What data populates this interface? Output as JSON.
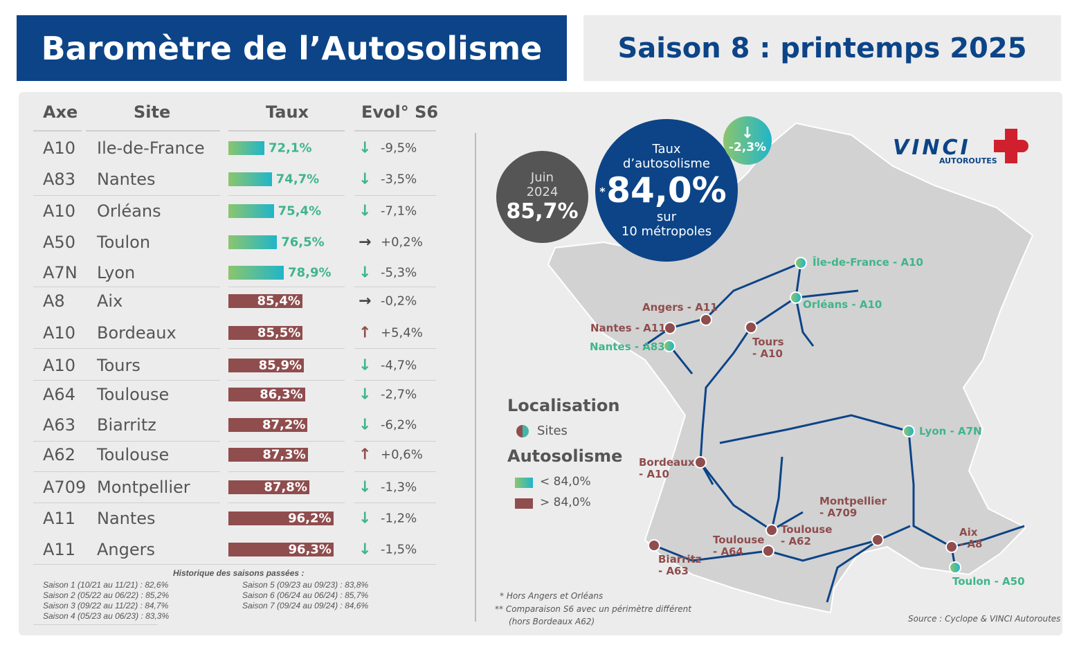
{
  "header": {
    "title": "Baromètre de l’Autosolisme",
    "season": "Saison 8 : printemps 2025"
  },
  "colors": {
    "brand_blue": "#0c4487",
    "above_threshold": "#8f4d4e",
    "below_gradient": [
      "#8cc56d",
      "#20b5c9"
    ],
    "panel": "#ececec"
  },
  "table": {
    "headers": {
      "axe": "Axe",
      "site": "Site",
      "taux": "Taux",
      "evol": "Evol° S6"
    }
  },
  "chart_data": {
    "type": "bar",
    "orientation": "horizontal",
    "threshold": 84.0,
    "rows": [
      {
        "axe": "A10",
        "site": "Ile-de-France",
        "taux": 72.1,
        "label": "72,1%",
        "evol": "-9,5%",
        "trend": "down"
      },
      {
        "axe": "A83",
        "site": "Nantes",
        "taux": 74.7,
        "label": "74,7%",
        "evol": "-3,5%",
        "trend": "down"
      },
      {
        "axe": "A10",
        "site": "Orléans",
        "taux": 75.4,
        "label": "75,4%",
        "evol": "-7,1%",
        "trend": "down"
      },
      {
        "axe": "A50",
        "site": "Toulon",
        "taux": 76.5,
        "label": "76,5%",
        "evol": "+0,2%",
        "trend": "flat"
      },
      {
        "axe": "A7N",
        "site": "Lyon",
        "taux": 78.9,
        "label": "78,9%",
        "evol": "-5,3%",
        "trend": "down"
      },
      {
        "axe": "A8",
        "site": "Aix",
        "taux": 85.4,
        "label": "85,4%",
        "evol": "-0,2%",
        "trend": "flat"
      },
      {
        "axe": "A10",
        "site": "Bordeaux",
        "taux": 85.5,
        "label": "85,5%",
        "evol": "+5,4%",
        "trend": "up"
      },
      {
        "axe": "A10",
        "site": "Tours",
        "taux": 85.9,
        "label": "85,9%",
        "evol": "-4,7%",
        "trend": "down"
      },
      {
        "axe": "A64",
        "site": "Toulouse",
        "taux": 86.3,
        "label": "86,3%",
        "evol": "-2,7%",
        "trend": "down"
      },
      {
        "axe": "A63",
        "site": "Biarritz",
        "taux": 87.2,
        "label": "87,2%",
        "evol": "-6,2%",
        "trend": "down"
      },
      {
        "axe": "A62",
        "site": "Toulouse",
        "taux": 87.3,
        "label": "87,3%",
        "evol": "+0,6%",
        "trend": "up"
      },
      {
        "axe": "A709",
        "site": "Montpellier",
        "taux": 87.8,
        "label": "87,8%",
        "evol": "-1,3%",
        "trend": "down"
      },
      {
        "axe": "A11",
        "site": "Nantes",
        "taux": 96.2,
        "label": "96,2%",
        "evol": "-1,2%",
        "trend": "down"
      },
      {
        "axe": "A11",
        "site": "Angers",
        "taux": 96.3,
        "label": "96,3%",
        "evol": "-1,5%",
        "trend": "down"
      }
    ]
  },
  "history": {
    "title": "Historique des saisons passées :",
    "items": [
      "Saison 1 (10/21 au 11/21) : 82,6%",
      "Saison 2 (05/22 au 06/22) : 85,2%",
      "Saison 3 (09/22 au 11/22) : 84,7%",
      "Saison 4 (05/23 au 06/23) : 83,3%",
      "Saison 5 (09/23 au 09/23) : 83,8%",
      "Saison 6 (06/24 au 06/24) : 85,7%",
      "Saison 7 (09/24 au 09/24) : 84,6%"
    ]
  },
  "kpi": {
    "prev_label1": "Juin",
    "prev_label2": "2024",
    "prev_value": "85,7%",
    "main_label1": "Taux",
    "main_label2": "d’autosolisme",
    "main_star": "*",
    "main_value": "84,0%",
    "main_label3": "sur",
    "main_label4": "10 métropoles",
    "delta": "-2,3%",
    "delta_star": "**"
  },
  "logo": {
    "name": "VINCI",
    "sub": "AUTOROUTES"
  },
  "legend": {
    "loc_title": "Localisation",
    "sites": "Sites",
    "auto_title": "Autosolisme",
    "low": "< 84,0%",
    "high": "> 84,0%"
  },
  "map": {
    "sites": [
      {
        "label": "Île-de-France - A10",
        "level": "low"
      },
      {
        "label": "Orléans - A10",
        "level": "low"
      },
      {
        "label": "Angers - A11",
        "level": "high"
      },
      {
        "label": "Nantes - A11",
        "level": "high"
      },
      {
        "label": "Nantes - A83",
        "level": "low"
      },
      {
        "label": "Tours\n- A10",
        "level": "high"
      },
      {
        "label": "Lyon - A7N",
        "level": "low"
      },
      {
        "label": "Bordeaux\n- A10",
        "level": "high"
      },
      {
        "label": "Toulouse\n- A62",
        "level": "high"
      },
      {
        "label": "Toulouse\n- A64",
        "level": "high"
      },
      {
        "label": "Montpellier\n- A709",
        "level": "high"
      },
      {
        "label": "Aix\n- A8",
        "level": "high"
      },
      {
        "label": "Biarritz\n- A63",
        "level": "high"
      },
      {
        "label": "Toulon - A50",
        "level": "low"
      }
    ]
  },
  "notes": {
    "n1": "*  Hors Angers et Orléans",
    "n2": "**  Comparaison S6 avec un périmètre différent",
    "n3": "(hors Bordeaux A62)",
    "source": "Source : Cyclope & VINCI Autoroutes"
  }
}
